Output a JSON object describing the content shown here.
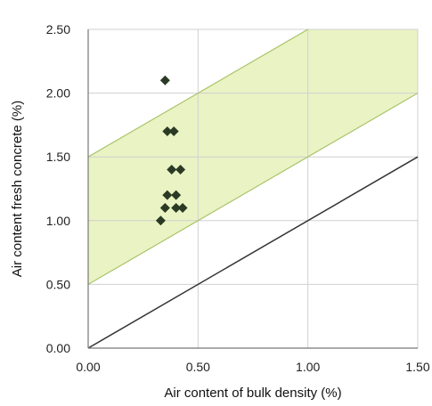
{
  "chart_data": {
    "type": "scatter",
    "title": "",
    "xlabel": "Air content of bulk density (%)",
    "ylabel": "Air content fresh concrete (%)",
    "xlim": [
      0,
      1.5
    ],
    "ylim": [
      0,
      2.5
    ],
    "x_ticks": [
      "0.00",
      "0.50",
      "1.00",
      "1.50"
    ],
    "y_ticks": [
      "0.00",
      "0.50",
      "1.00",
      "1.50",
      "2.00",
      "2.50"
    ],
    "x_tick_values": [
      0,
      0.5,
      1.0,
      1.5
    ],
    "y_tick_values": [
      0,
      0.5,
      1.0,
      1.5,
      2.0,
      2.5
    ],
    "grid": true,
    "points": [
      {
        "x": 0.35,
        "y": 2.1
      },
      {
        "x": 0.36,
        "y": 1.7
      },
      {
        "x": 0.39,
        "y": 1.7
      },
      {
        "x": 0.38,
        "y": 1.4
      },
      {
        "x": 0.42,
        "y": 1.4
      },
      {
        "x": 0.36,
        "y": 1.2
      },
      {
        "x": 0.4,
        "y": 1.2
      },
      {
        "x": 0.35,
        "y": 1.1
      },
      {
        "x": 0.4,
        "y": 1.1
      },
      {
        "x": 0.43,
        "y": 1.1
      },
      {
        "x": 0.33,
        "y": 1.0
      }
    ],
    "reference_line": {
      "x": [
        0,
        1.5
      ],
      "y": [
        0,
        1.5
      ]
    },
    "band": {
      "lower_offset": 0.5,
      "upper_offset": 1.5
    },
    "colors": {
      "band_fill": "#eaf3c4",
      "band_edge": "#a9c46a",
      "reference_line": "#333333",
      "marker": "#2b3a24",
      "grid": "#d0d0d0",
      "axis": "#777777"
    }
  }
}
